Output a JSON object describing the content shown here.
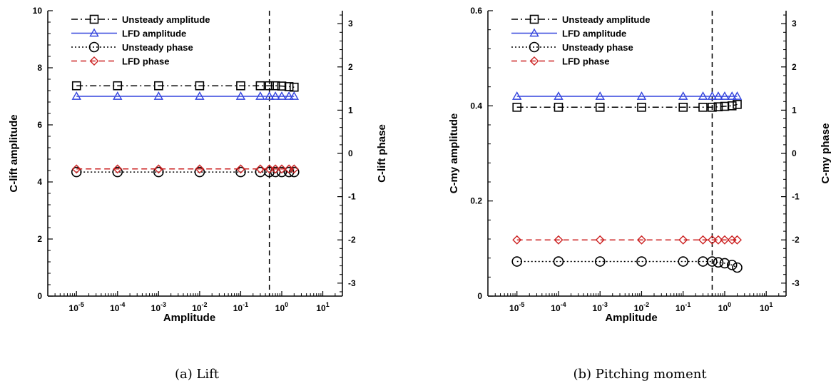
{
  "chart_data": [
    {
      "type": "line",
      "caption": "(a) Lift",
      "xlabel": "Amplitude",
      "ylabel": "C-lift amplitude",
      "y2label": "C-lift phase",
      "xscale": "log",
      "xlim": [
        2e-06,
        30
      ],
      "ylim": [
        0,
        10
      ],
      "y2lim": [
        -3.3,
        3.3
      ],
      "xticks": [
        "10-5",
        "10-4",
        "10-3",
        "10-2",
        "10-1",
        "100",
        "101"
      ],
      "yticks": [
        0,
        2,
        4,
        6,
        8,
        10
      ],
      "y2ticks": [
        -3,
        -2,
        -1,
        0,
        1,
        2,
        3
      ],
      "vline_x": 0.5,
      "legend_position": "top-left",
      "series": [
        {
          "name": "Unsteady amplitude",
          "axis": "left",
          "color": "#000000",
          "marker": "square",
          "line": "dashdot",
          "x": [
            1e-05,
            0.0001,
            0.001,
            0.01,
            0.1,
            0.3,
            0.5,
            0.7,
            1.0,
            1.5,
            2.0
          ],
          "y": [
            7.37,
            7.37,
            7.37,
            7.37,
            7.37,
            7.37,
            7.37,
            7.37,
            7.36,
            7.34,
            7.32
          ]
        },
        {
          "name": "LFD amplitude",
          "axis": "left",
          "color": "#3344dd",
          "marker": "triangle",
          "line": "solid",
          "x": [
            1e-05,
            0.0001,
            0.001,
            0.01,
            0.1,
            0.3,
            0.5,
            0.7,
            1.0,
            1.5,
            2.0
          ],
          "y": [
            7.0,
            7.0,
            7.0,
            7.0,
            7.0,
            7.0,
            7.0,
            7.0,
            7.0,
            7.0,
            7.0
          ]
        },
        {
          "name": "Unsteady phase",
          "axis": "right",
          "color": "#000000",
          "marker": "circle",
          "line": "dotted",
          "x": [
            1e-05,
            0.0001,
            0.001,
            0.01,
            0.1,
            0.3,
            0.5,
            0.7,
            1.0,
            1.5,
            2.0
          ],
          "y": [
            -0.43,
            -0.43,
            -0.43,
            -0.43,
            -0.43,
            -0.43,
            -0.43,
            -0.43,
            -0.43,
            -0.43,
            -0.43
          ]
        },
        {
          "name": "LFD phase",
          "axis": "right",
          "color": "#cc2222",
          "marker": "diamond",
          "line": "dashed",
          "x": [
            1e-05,
            0.0001,
            0.001,
            0.01,
            0.1,
            0.3,
            0.5,
            0.7,
            1.0,
            1.5,
            2.0
          ],
          "y": [
            -0.36,
            -0.36,
            -0.36,
            -0.36,
            -0.36,
            -0.36,
            -0.36,
            -0.36,
            -0.36,
            -0.36,
            -0.36
          ]
        }
      ]
    },
    {
      "type": "line",
      "caption": "(b) Pitching moment",
      "xlabel": "Amplitude",
      "ylabel": "C-my amplitude",
      "y2label": "C-my phase",
      "xscale": "log",
      "xlim": [
        2e-06,
        30
      ],
      "ylim": [
        0,
        0.6
      ],
      "y2lim": [
        -3.3,
        3.3
      ],
      "xticks": [
        "10-5",
        "10-4",
        "10-3",
        "10-2",
        "10-1",
        "100",
        "101"
      ],
      "yticks": [
        0,
        0.2,
        0.4,
        0.6
      ],
      "y2ticks": [
        -3,
        -2,
        -1,
        0,
        1,
        2,
        3
      ],
      "vline_x": 0.5,
      "legend_position": "top-left",
      "series": [
        {
          "name": "Unsteady amplitude",
          "axis": "left",
          "color": "#000000",
          "marker": "square",
          "line": "dashdot",
          "x": [
            1e-05,
            0.0001,
            0.001,
            0.01,
            0.1,
            0.3,
            0.5,
            0.7,
            1.0,
            1.5,
            2.0
          ],
          "y": [
            0.397,
            0.397,
            0.397,
            0.397,
            0.397,
            0.397,
            0.397,
            0.398,
            0.399,
            0.4,
            0.403
          ]
        },
        {
          "name": "LFD amplitude",
          "axis": "left",
          "color": "#3344dd",
          "marker": "triangle",
          "line": "solid",
          "x": [
            1e-05,
            0.0001,
            0.001,
            0.01,
            0.1,
            0.3,
            0.5,
            0.7,
            1.0,
            1.5,
            2.0
          ],
          "y": [
            0.42,
            0.42,
            0.42,
            0.42,
            0.42,
            0.42,
            0.42,
            0.42,
            0.42,
            0.42,
            0.42
          ]
        },
        {
          "name": "Unsteady phase",
          "axis": "right",
          "color": "#000000",
          "marker": "circle",
          "line": "dotted",
          "x": [
            1e-05,
            0.0001,
            0.001,
            0.01,
            0.1,
            0.3,
            0.5,
            0.7,
            1.0,
            1.5,
            2.0
          ],
          "y": [
            -2.5,
            -2.5,
            -2.5,
            -2.5,
            -2.5,
            -2.5,
            -2.5,
            -2.52,
            -2.54,
            -2.58,
            -2.64
          ]
        },
        {
          "name": "LFD phase",
          "axis": "right",
          "color": "#cc2222",
          "marker": "diamond",
          "line": "dashed",
          "x": [
            1e-05,
            0.0001,
            0.001,
            0.01,
            0.1,
            0.3,
            0.5,
            0.7,
            1.0,
            1.5,
            2.0
          ],
          "y": [
            -2.0,
            -2.0,
            -2.0,
            -2.0,
            -2.0,
            -2.0,
            -2.0,
            -2.0,
            -2.0,
            -2.0,
            -2.0
          ]
        }
      ]
    }
  ]
}
